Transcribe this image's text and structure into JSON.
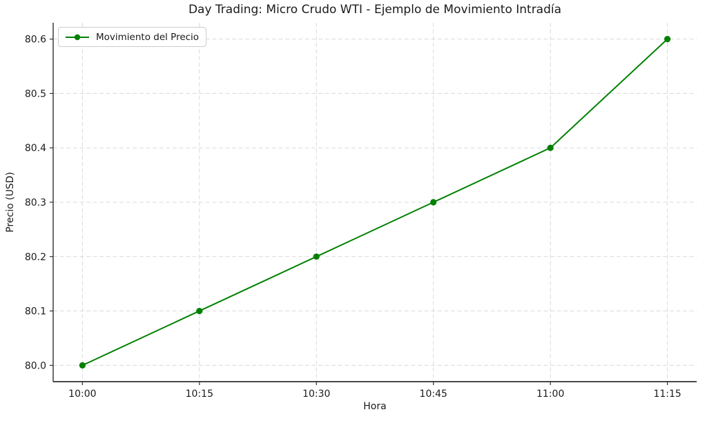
{
  "figure": {
    "background_color": "#ffffff",
    "text_color": "#1a1a1a",
    "spine_color": "#2e2e2e"
  },
  "chart_data": {
    "type": "line",
    "title": "Day Trading: Micro Crudo WTI - Ejemplo de Movimiento Intradía",
    "xlabel": "Hora",
    "ylabel": "Precio (USD)",
    "categories": [
      "10:00",
      "10:15",
      "10:30",
      "10:45",
      "11:00",
      "11:15"
    ],
    "series": [
      {
        "name": "Movimiento del Precio",
        "values": [
          80.0,
          80.1,
          80.2,
          80.3,
          80.4,
          80.6
        ],
        "color": "#008000",
        "marker": "circle",
        "line_width": 2
      }
    ],
    "xtick_labels": [
      "10:00",
      "10:15",
      "10:30",
      "10:45",
      "11:00",
      "11:15"
    ],
    "ytick_values": [
      80.0,
      80.1,
      80.2,
      80.3,
      80.4,
      80.5,
      80.6
    ],
    "ytick_labels": [
      "80.0",
      "80.1",
      "80.2",
      "80.3",
      "80.4",
      "80.5",
      "80.6"
    ],
    "xlim": [
      -0.25,
      5.25
    ],
    "ylim": [
      79.97,
      80.63
    ],
    "grid": true,
    "grid_style": "dashed",
    "grid_color": "#d9d9d9",
    "legend": {
      "label": "Movimiento del Precio",
      "position": "upper left",
      "border_color": "#cccccc"
    }
  }
}
